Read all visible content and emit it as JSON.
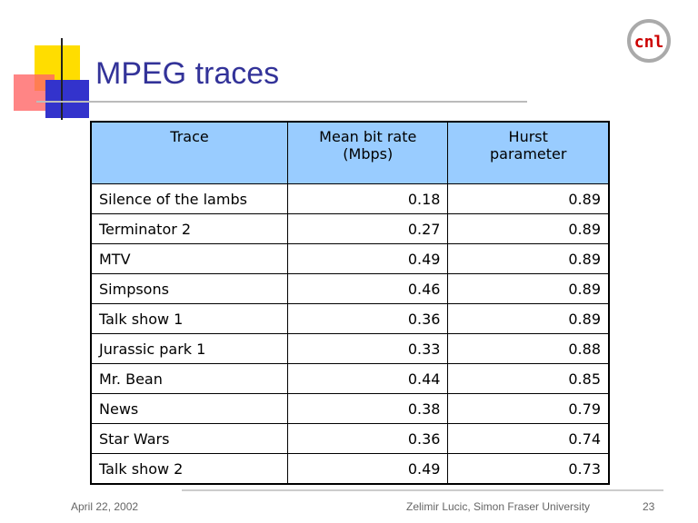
{
  "logo": {
    "label": "cnl"
  },
  "header": {
    "title": "MPEG traces"
  },
  "table": {
    "columns": [
      "Trace",
      "Mean bit rate (Mbps)",
      "Hurst parameter"
    ],
    "rows": [
      [
        "Silence of the lambs",
        "0.18",
        "0.89"
      ],
      [
        "Terminator 2",
        "0.27",
        "0.89"
      ],
      [
        "MTV",
        "0.49",
        "0.89"
      ],
      [
        "Simpsons",
        "0.46",
        "0.89"
      ],
      [
        "Talk show 1",
        "0.36",
        "0.89"
      ],
      [
        "Jurassic park 1",
        "0.33",
        "0.88"
      ],
      [
        "Mr. Bean",
        "0.44",
        "0.85"
      ],
      [
        "News",
        "0.38",
        "0.79"
      ],
      [
        "Star Wars",
        "0.36",
        "0.74"
      ],
      [
        "Talk show 2",
        "0.49",
        "0.73"
      ]
    ]
  },
  "footer": {
    "date": "April 22, 2002",
    "author": "Zelimir Lucic, Simon Fraser University",
    "page": "23"
  }
}
